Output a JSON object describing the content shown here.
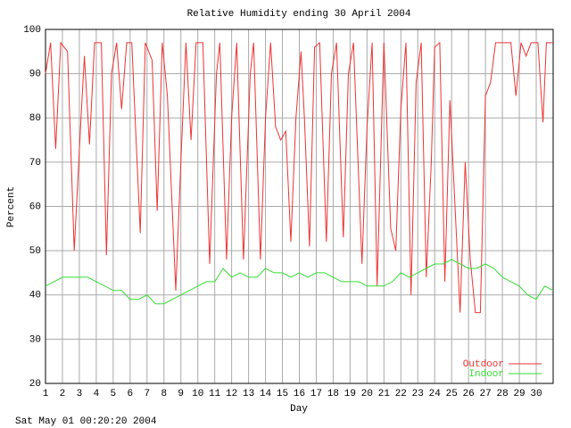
{
  "chart_data": {
    "type": "line",
    "title": "Relative Humidity ending 30 April 2004",
    "x_label": "Day",
    "y_label": "Percent",
    "footer": "Sat May 01 00:20:20 2004",
    "xlim": [
      1,
      31
    ],
    "xticks": [
      1,
      2,
      3,
      4,
      5,
      6,
      7,
      8,
      9,
      10,
      11,
      12,
      13,
      14,
      15,
      16,
      17,
      18,
      19,
      20,
      21,
      22,
      23,
      24,
      25,
      26,
      27,
      28,
      29,
      30
    ],
    "ylim": [
      20,
      100
    ],
    "yticks": [
      20,
      30,
      40,
      50,
      60,
      70,
      80,
      90,
      100
    ],
    "grid": true,
    "legend": "bottom-right",
    "series": [
      {
        "name": "Outdoor",
        "color": "#ee3333",
        "x": [
          1.0,
          1.3,
          1.6,
          1.9,
          2.3,
          2.7,
          3.1,
          3.3,
          3.6,
          3.9,
          4.3,
          4.6,
          4.9,
          5.2,
          5.5,
          5.8,
          6.1,
          6.6,
          6.9,
          7.3,
          7.6,
          7.9,
          8.2,
          8.7,
          9.0,
          9.3,
          9.6,
          9.9,
          10.3,
          10.7,
          11.1,
          11.3,
          11.7,
          12.0,
          12.3,
          12.7,
          13.1,
          13.3,
          13.7,
          14.0,
          14.3,
          14.6,
          14.9,
          15.2,
          15.5,
          15.8,
          16.1,
          16.3,
          16.6,
          16.9,
          17.2,
          17.6,
          17.9,
          18.2,
          18.6,
          18.9,
          19.2,
          19.7,
          20.0,
          20.3,
          20.6,
          21.0,
          21.4,
          21.7,
          22.0,
          22.3,
          22.6,
          22.9,
          23.2,
          23.5,
          23.8,
          24.0,
          24.3,
          24.6,
          24.9,
          25.2,
          25.5,
          25.8,
          26.1,
          26.4,
          26.7,
          27.0,
          27.3,
          27.6,
          28.1,
          28.5,
          28.8,
          29.1,
          29.4,
          29.7,
          30.1,
          30.4,
          30.6,
          31.0
        ],
        "values": [
          90,
          97,
          73,
          97,
          95,
          50,
          80,
          94,
          74,
          97,
          97,
          49,
          90,
          97,
          82,
          97,
          97,
          54,
          97,
          93,
          59,
          97,
          85,
          41,
          70,
          97,
          75,
          97,
          97,
          47,
          90,
          97,
          48,
          80,
          97,
          48,
          90,
          97,
          48,
          80,
          97,
          78,
          75,
          77,
          52,
          80,
          95,
          80,
          51,
          96,
          97,
          52,
          90,
          97,
          53,
          90,
          97,
          47,
          78,
          97,
          42,
          97,
          55,
          50,
          82,
          97,
          40,
          88,
          97,
          44,
          70,
          96,
          97,
          43,
          84,
          60,
          36,
          70,
          48,
          36,
          36,
          85,
          88,
          97,
          97,
          97,
          85,
          97,
          94,
          97,
          97,
          79,
          97,
          97
        ]
      },
      {
        "name": "Indoor",
        "color": "#33dd33",
        "x": [
          1,
          1.5,
          2,
          2.5,
          3,
          3.5,
          4,
          4.5,
          5,
          5.5,
          6,
          6.5,
          7,
          7.5,
          8,
          8.5,
          9,
          9.5,
          10,
          10.5,
          11,
          11.5,
          12,
          12.5,
          13,
          13.5,
          14,
          14.5,
          15,
          15.5,
          16,
          16.5,
          17,
          17.5,
          18,
          18.5,
          19,
          19.5,
          20,
          20.5,
          21,
          21.5,
          22,
          22.5,
          23,
          23.5,
          24,
          24.5,
          25,
          25.5,
          26,
          26.5,
          27,
          27.5,
          28,
          28.5,
          29,
          29.5,
          30,
          30.5,
          31
        ],
        "values": [
          42,
          43,
          44,
          44,
          44,
          44,
          43,
          42,
          41,
          41,
          39,
          39,
          40,
          38,
          38,
          39,
          40,
          41,
          42,
          43,
          43,
          46,
          44,
          45,
          44,
          44,
          46,
          45,
          45,
          44,
          45,
          44,
          45,
          45,
          44,
          43,
          43,
          43,
          42,
          42,
          42,
          43,
          45,
          44,
          45,
          46,
          47,
          47,
          48,
          47,
          46,
          46,
          47,
          46,
          44,
          43,
          42,
          40,
          39,
          42,
          41
        ]
      }
    ]
  }
}
